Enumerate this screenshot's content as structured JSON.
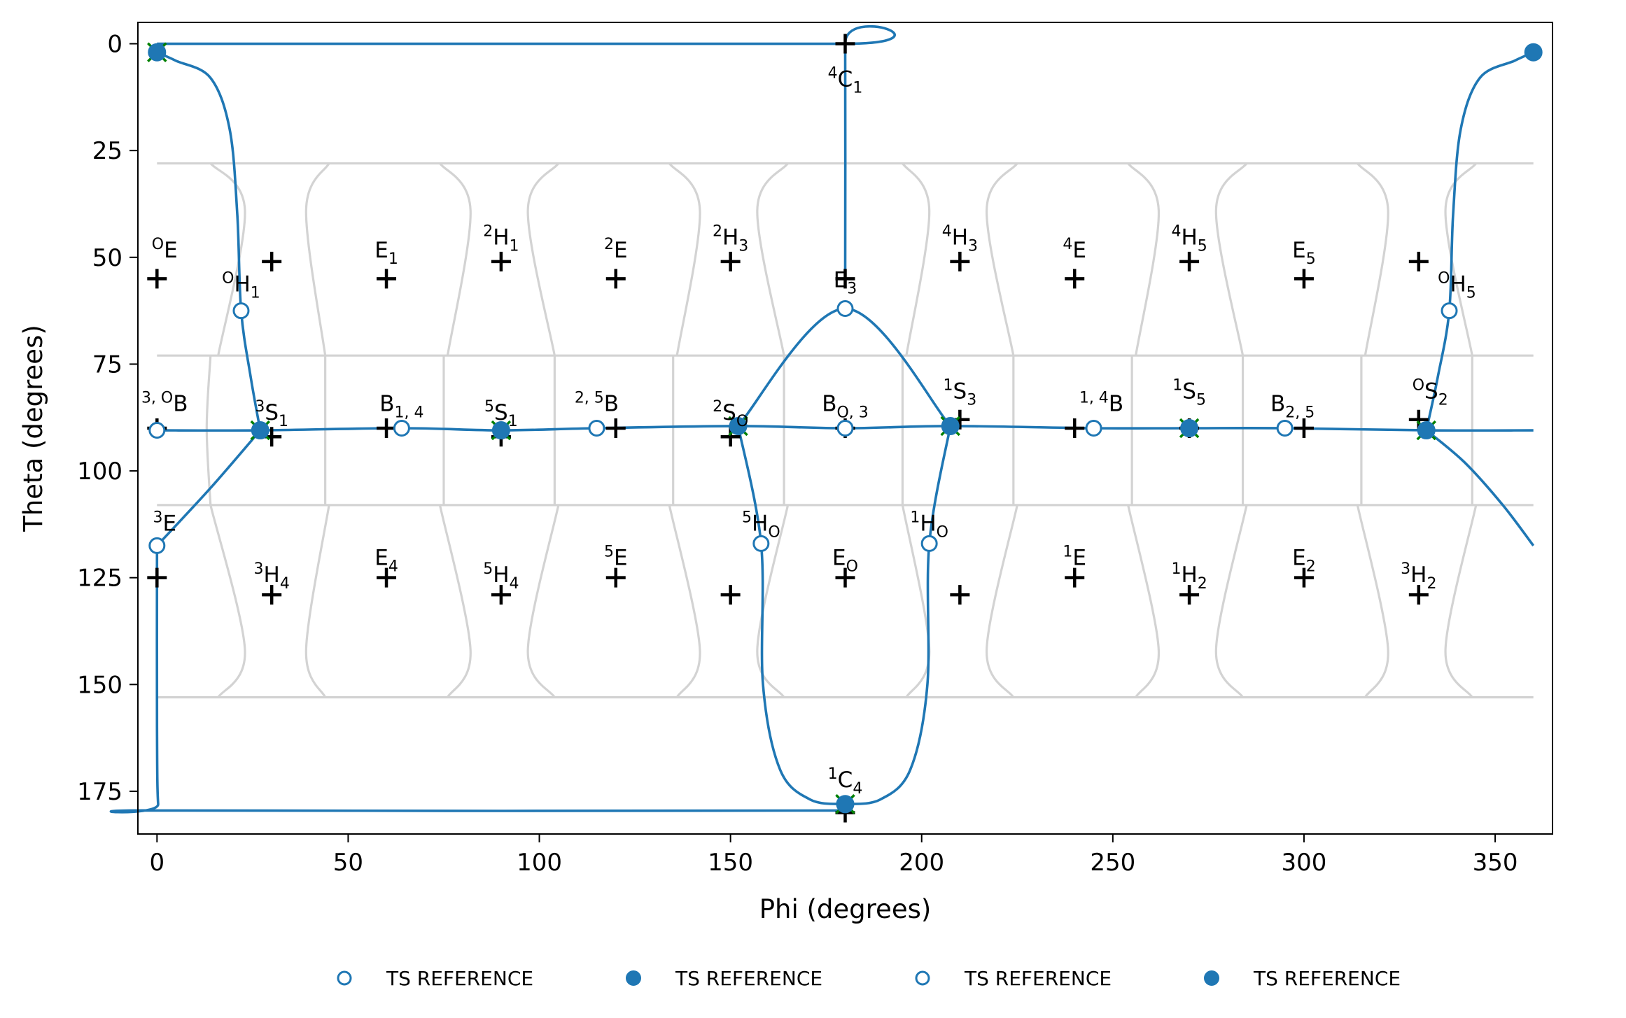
{
  "chart_data": {
    "type": "scatter",
    "title": "",
    "xlabel": "Phi (degrees)",
    "ylabel": "Theta (degrees)",
    "xlim": [
      -5,
      365
    ],
    "ylim": [
      185,
      -5
    ],
    "y_inverted": true,
    "x_ticks": [
      0,
      50,
      100,
      150,
      200,
      250,
      300,
      350
    ],
    "y_ticks": [
      0,
      25,
      50,
      75,
      100,
      125,
      150,
      175
    ],
    "x_tick_labels": [
      "0",
      "50",
      "100",
      "150",
      "200",
      "250",
      "300",
      "350"
    ],
    "y_tick_labels": [
      "0",
      "25",
      "50",
      "75",
      "100",
      "125",
      "150",
      "175"
    ],
    "grid": false,
    "legend_placement": "bottom-center",
    "colors": {
      "path": "#1f77b4",
      "region_lines": "#d3d3d3",
      "reference_marks": "#000000",
      "endpoint_marks": "#008000",
      "axes": "#000000"
    },
    "legend": [
      {
        "label": "TS REFERENCE",
        "marker": "open-circle"
      },
      {
        "label": "TS REFERENCE",
        "marker": "filled-circle"
      },
      {
        "label": "TS REFERENCE",
        "marker": "open-circle"
      },
      {
        "label": "TS REFERENCE",
        "marker": "filled-circle"
      }
    ],
    "pucker_labels": [
      {
        "sup": "4",
        "main": "C",
        "sub": "1",
        "phi": 180,
        "theta": 10
      },
      {
        "sup": "O",
        "main": "E",
        "sub": "",
        "phi": 2,
        "theta": 50
      },
      {
        "sup": "",
        "main": "E",
        "sub": "1",
        "phi": 60,
        "theta": 50
      },
      {
        "sup": "2",
        "main": "H",
        "sub": "1",
        "phi": 90,
        "theta": 47
      },
      {
        "sup": "2",
        "main": "E",
        "sub": "",
        "phi": 120,
        "theta": 50
      },
      {
        "sup": "2",
        "main": "H",
        "sub": "3",
        "phi": 150,
        "theta": 47
      },
      {
        "sup": "",
        "main": "E",
        "sub": "3",
        "phi": 180,
        "theta": 57
      },
      {
        "sup": "4",
        "main": "H",
        "sub": "3",
        "phi": 210,
        "theta": 47
      },
      {
        "sup": "4",
        "main": "E",
        "sub": "",
        "phi": 240,
        "theta": 50
      },
      {
        "sup": "4",
        "main": "H",
        "sub": "5",
        "phi": 270,
        "theta": 47
      },
      {
        "sup": "",
        "main": "E",
        "sub": "5",
        "phi": 300,
        "theta": 50
      },
      {
        "sup": "O",
        "main": "H",
        "sub": "1",
        "phi": 22,
        "theta": 58
      },
      {
        "sup": "O",
        "main": "H",
        "sub": "5",
        "phi": 340,
        "theta": 58
      },
      {
        "sup": "3, O",
        "main": "B",
        "sub": "",
        "phi": 2,
        "theta": 86
      },
      {
        "sup": "3",
        "main": "S",
        "sub": "1",
        "phi": 30,
        "theta": 88
      },
      {
        "sup": "",
        "main": "B",
        "sub": "1, 4",
        "phi": 64,
        "theta": 86
      },
      {
        "sup": "5",
        "main": "S",
        "sub": "1",
        "phi": 90,
        "theta": 88
      },
      {
        "sup": "2, 5",
        "main": "B",
        "sub": "",
        "phi": 115,
        "theta": 86
      },
      {
        "sup": "2",
        "main": "S",
        "sub": "O",
        "phi": 150,
        "theta": 88
      },
      {
        "sup": "",
        "main": "B",
        "sub": "O, 3",
        "phi": 180,
        "theta": 86
      },
      {
        "sup": "1",
        "main": "S",
        "sub": "3",
        "phi": 210,
        "theta": 83
      },
      {
        "sup": "1, 4",
        "main": "B",
        "sub": "",
        "phi": 247,
        "theta": 86
      },
      {
        "sup": "1",
        "main": "S",
        "sub": "5",
        "phi": 270,
        "theta": 83
      },
      {
        "sup": "",
        "main": "B",
        "sub": "2, 5",
        "phi": 297,
        "theta": 86
      },
      {
        "sup": "O",
        "main": "S",
        "sub": "2",
        "phi": 333,
        "theta": 83
      },
      {
        "sup": "3",
        "main": "E",
        "sub": "",
        "phi": 2,
        "theta": 114
      },
      {
        "sup": "5",
        "main": "H",
        "sub": "O",
        "phi": 158,
        "theta": 114
      },
      {
        "sup": "1",
        "main": "H",
        "sub": "O",
        "phi": 202,
        "theta": 114
      },
      {
        "sup": "3",
        "main": "H",
        "sub": "4",
        "phi": 30,
        "theta": 126
      },
      {
        "sup": "",
        "main": "E",
        "sub": "4",
        "phi": 60,
        "theta": 122
      },
      {
        "sup": "5",
        "main": "H",
        "sub": "4",
        "phi": 90,
        "theta": 126
      },
      {
        "sup": "5",
        "main": "E",
        "sub": "",
        "phi": 120,
        "theta": 122
      },
      {
        "sup": "",
        "main": "E",
        "sub": "O",
        "phi": 180,
        "theta": 122
      },
      {
        "sup": "1",
        "main": "E",
        "sub": "",
        "phi": 240,
        "theta": 122
      },
      {
        "sup": "1",
        "main": "H",
        "sub": "2",
        "phi": 270,
        "theta": 126
      },
      {
        "sup": "",
        "main": "E",
        "sub": "2",
        "phi": 300,
        "theta": 122
      },
      {
        "sup": "3",
        "main": "H",
        "sub": "2",
        "phi": 330,
        "theta": 126
      },
      {
        "sup": "1",
        "main": "C",
        "sub": "4",
        "phi": 180,
        "theta": 174
      }
    ],
    "reference_points": [
      [
        180,
        0
      ],
      [
        0,
        55
      ],
      [
        30,
        51
      ],
      [
        60,
        55
      ],
      [
        90,
        51
      ],
      [
        120,
        55
      ],
      [
        150,
        51
      ],
      [
        180,
        55
      ],
      [
        210,
        51
      ],
      [
        240,
        55
      ],
      [
        270,
        51
      ],
      [
        300,
        55
      ],
      [
        330,
        51
      ],
      [
        0,
        90
      ],
      [
        30,
        92
      ],
      [
        60,
        90
      ],
      [
        90,
        92
      ],
      [
        120,
        90
      ],
      [
        150,
        92
      ],
      [
        180,
        90
      ],
      [
        210,
        88
      ],
      [
        240,
        90
      ],
      [
        270,
        90
      ],
      [
        300,
        90
      ],
      [
        330,
        88
      ],
      [
        0,
        125
      ],
      [
        30,
        129
      ],
      [
        60,
        125
      ],
      [
        90,
        129
      ],
      [
        120,
        125
      ],
      [
        150,
        129
      ],
      [
        180,
        125
      ],
      [
        210,
        129
      ],
      [
        240,
        125
      ],
      [
        270,
        129
      ],
      [
        300,
        125
      ],
      [
        330,
        129
      ],
      [
        180,
        180
      ]
    ],
    "minima": [
      [
        0,
        2
      ],
      [
        27,
        90.5
      ],
      [
        90,
        90.5
      ],
      [
        152,
        89.5
      ],
      [
        207.5,
        89.5
      ],
      [
        270,
        90
      ],
      [
        332,
        90.5
      ],
      [
        180,
        178
      ],
      [
        360,
        2
      ]
    ],
    "transition_states": [
      [
        22,
        62.5
      ],
      [
        338,
        62.5
      ],
      [
        0,
        90.5
      ],
      [
        64,
        90
      ],
      [
        115,
        90
      ],
      [
        180,
        90
      ],
      [
        245,
        90
      ],
      [
        295,
        90
      ],
      [
        0,
        117.5
      ],
      [
        158,
        117
      ],
      [
        202,
        117
      ],
      [
        180,
        62
      ]
    ],
    "endpoint_marks": [
      [
        0,
        2
      ],
      [
        27,
        90.5
      ],
      [
        90,
        90.5
      ],
      [
        152,
        89.5
      ],
      [
        207.5,
        89.5
      ],
      [
        270,
        90
      ],
      [
        332,
        90.5
      ],
      [
        180,
        178
      ]
    ],
    "paths": [
      {
        "points": [
          [
            0,
            0
          ],
          [
            179.5,
            0
          ],
          [
            180,
            0
          ],
          [
            180,
            55
          ]
        ]
      },
      {
        "points": [
          [
            0,
            2
          ],
          [
            5,
            4
          ],
          [
            14,
            8
          ],
          [
            19,
            20
          ],
          [
            21,
            40
          ],
          [
            22,
            62.5
          ],
          [
            24.5,
            78
          ],
          [
            27,
            90.5
          ]
        ]
      },
      {
        "points": [
          [
            0,
            90.5
          ],
          [
            27,
            90.5
          ],
          [
            64,
            90
          ],
          [
            90,
            90.5
          ],
          [
            115,
            90
          ],
          [
            152,
            89.5
          ],
          [
            180,
            90
          ],
          [
            207.5,
            89.5
          ],
          [
            245,
            90
          ],
          [
            270,
            90
          ],
          [
            295,
            90
          ],
          [
            332,
            90.5
          ],
          [
            360,
            90.5
          ]
        ]
      },
      {
        "points": [
          [
            0,
            117.5
          ],
          [
            14,
            104
          ],
          [
            27,
            90.5
          ]
        ]
      },
      {
        "points": [
          [
            0,
            117.5
          ],
          [
            0,
            160
          ],
          [
            0.3,
            178
          ],
          [
            1.5,
            179.5
          ],
          [
            180,
            179.5
          ]
        ]
      },
      {
        "points": [
          [
            152,
            89.5
          ],
          [
            180,
            62
          ],
          [
            207.5,
            89.5
          ]
        ]
      },
      {
        "points": [
          [
            152,
            89.5
          ],
          [
            158,
            117
          ],
          [
            158.5,
            150
          ],
          [
            163,
            170
          ],
          [
            171,
            177
          ],
          [
            180,
            178
          ]
        ]
      },
      {
        "points": [
          [
            207.5,
            89.5
          ],
          [
            202,
            117
          ],
          [
            201.5,
            150
          ],
          [
            197,
            170
          ],
          [
            189,
            177
          ],
          [
            180,
            178
          ]
        ]
      },
      {
        "points": [
          [
            360,
            2
          ],
          [
            355,
            4
          ],
          [
            346,
            8
          ],
          [
            341,
            20
          ],
          [
            339,
            40
          ],
          [
            338,
            62.5
          ],
          [
            335,
            78
          ],
          [
            332,
            90.5
          ]
        ]
      },
      {
        "points": [
          [
            332,
            90.5
          ],
          [
            342,
            98
          ],
          [
            352,
            108
          ],
          [
            360,
            117.5
          ]
        ]
      }
    ],
    "boundary_rows": [
      28,
      73,
      108,
      153
    ],
    "boundary_columns": [
      [
        [
          14,
          28
        ],
        [
          23,
          39
        ],
        [
          16,
          73
        ]
      ],
      [
        [
          45,
          28
        ],
        [
          39,
          39
        ],
        [
          44,
          73
        ]
      ],
      [
        [
          74,
          28
        ],
        [
          82,
          39
        ],
        [
          76,
          73
        ]
      ],
      [
        [
          105,
          28
        ],
        [
          97,
          39
        ],
        [
          104,
          73
        ]
      ],
      [
        [
          134,
          28
        ],
        [
          142,
          39
        ],
        [
          136,
          73
        ]
      ],
      [
        [
          165,
          28
        ],
        [
          157,
          39
        ],
        [
          164,
          73
        ]
      ],
      [
        [
          195,
          28
        ],
        [
          202,
          39
        ],
        [
          196,
          73
        ]
      ],
      [
        [
          225,
          28
        ],
        [
          217,
          39
        ],
        [
          224,
          73
        ]
      ],
      [
        [
          254,
          28
        ],
        [
          262,
          39
        ],
        [
          256,
          73
        ]
      ],
      [
        [
          285,
          28
        ],
        [
          277,
          39
        ],
        [
          284,
          73
        ]
      ],
      [
        [
          314,
          28
        ],
        [
          322,
          39
        ],
        [
          316,
          73
        ]
      ],
      [
        [
          345,
          28
        ],
        [
          337,
          39
        ],
        [
          344,
          73
        ]
      ],
      [
        [
          14,
          73
        ],
        [
          13,
          90
        ],
        [
          14,
          108
        ]
      ],
      [
        [
          44,
          73
        ],
        [
          44,
          90
        ],
        [
          44,
          108
        ]
      ],
      [
        [
          75,
          73
        ],
        [
          75,
          90
        ],
        [
          75,
          108
        ]
      ],
      [
        [
          104,
          73
        ],
        [
          104,
          90
        ],
        [
          104,
          108
        ]
      ],
      [
        [
          135,
          73
        ],
        [
          135,
          90
        ],
        [
          135,
          108
        ]
      ],
      [
        [
          164,
          73
        ],
        [
          164,
          90
        ],
        [
          164,
          108
        ]
      ],
      [
        [
          195,
          73
        ],
        [
          195,
          90
        ],
        [
          195,
          108
        ]
      ],
      [
        [
          224,
          73
        ],
        [
          224,
          90
        ],
        [
          224,
          108
        ]
      ],
      [
        [
          255,
          73
        ],
        [
          255,
          90
        ],
        [
          255,
          108
        ]
      ],
      [
        [
          284,
          73
        ],
        [
          284,
          90
        ],
        [
          284,
          108
        ]
      ],
      [
        [
          315,
          73
        ],
        [
          315,
          90
        ],
        [
          315,
          108
        ]
      ],
      [
        [
          344,
          73
        ],
        [
          344,
          90
        ],
        [
          344,
          108
        ]
      ],
      [
        [
          14,
          108
        ],
        [
          23,
          142
        ],
        [
          16,
          153
        ]
      ],
      [
        [
          45,
          108
        ],
        [
          39,
          142
        ],
        [
          44,
          153
        ]
      ],
      [
        [
          74,
          108
        ],
        [
          82,
          142
        ],
        [
          76,
          153
        ]
      ],
      [
        [
          105,
          108
        ],
        [
          97,
          142
        ],
        [
          104,
          153
        ]
      ],
      [
        [
          134,
          108
        ],
        [
          142,
          142
        ],
        [
          136,
          153
        ]
      ],
      [
        [
          165,
          108
        ],
        [
          157,
          142
        ],
        [
          164,
          153
        ]
      ],
      [
        [
          195,
          108
        ],
        [
          202,
          142
        ],
        [
          196,
          153
        ]
      ],
      [
        [
          225,
          108
        ],
        [
          217,
          142
        ],
        [
          224,
          153
        ]
      ],
      [
        [
          254,
          108
        ],
        [
          262,
          142
        ],
        [
          256,
          153
        ]
      ],
      [
        [
          285,
          108
        ],
        [
          277,
          142
        ],
        [
          284,
          153
        ]
      ],
      [
        [
          314,
          108
        ],
        [
          322,
          142
        ],
        [
          316,
          153
        ]
      ],
      [
        [
          345,
          108
        ],
        [
          337,
          142
        ],
        [
          344,
          153
        ]
      ]
    ]
  }
}
